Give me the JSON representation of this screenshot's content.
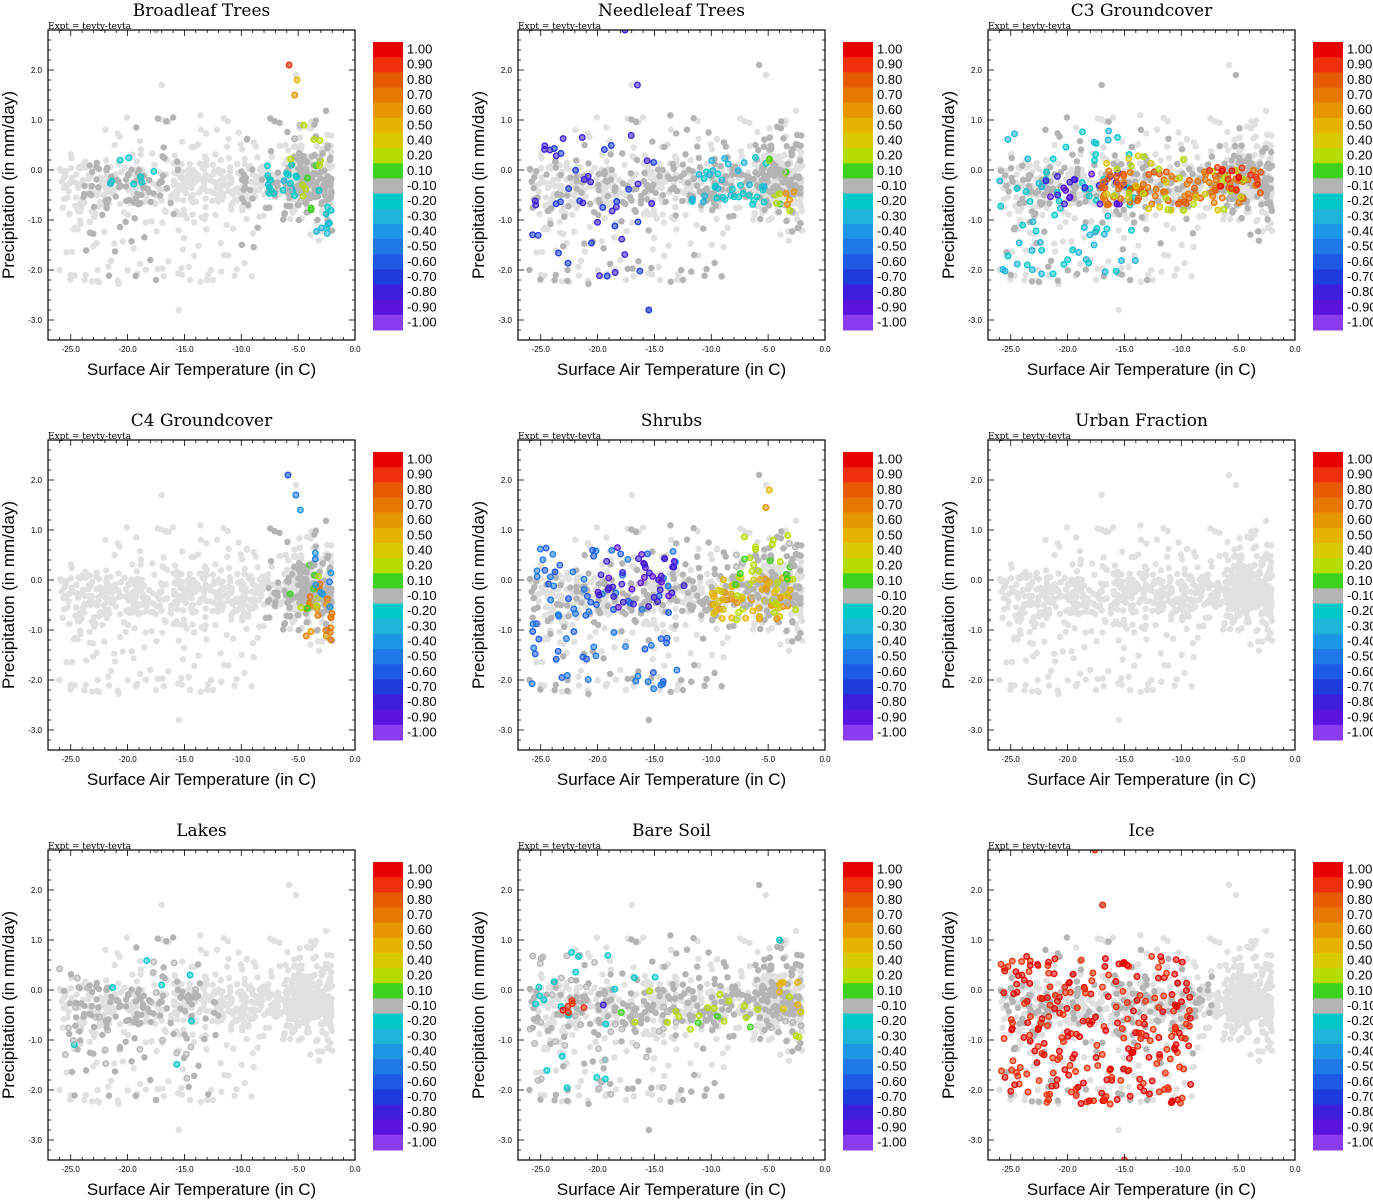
{
  "figure": {
    "expt_label": "Expt = tevty-tevta"
  },
  "chart_data": [
    {
      "type": "scatter",
      "title": "Broadleaf Trees",
      "expt": "Expt = tevty-tevta",
      "xlabel": "Surface Air Temperature (in C)",
      "ylabel": "Precipitation (in mm/day)",
      "xlim": [
        -27,
        0
      ],
      "ylim": [
        -3.4,
        2.8
      ],
      "x_ticks": [
        "-25.0",
        "-20.0",
        "-15.0",
        "-10.0",
        "-5.0",
        "0.0"
      ],
      "y_ticks": [
        "2.0",
        "1.0",
        "0.0",
        "-1.0",
        "-2.0",
        "-3.0"
      ],
      "highlight_clusters": [
        {
          "x": [
            -22,
            -17.5
          ],
          "y": [
            -0.3,
            0.3
          ],
          "value": -0.2,
          "n": 8
        },
        {
          "x": [
            -8,
            -5
          ],
          "y": [
            -0.6,
            0.1
          ],
          "value": -0.2,
          "n": 20
        },
        {
          "x": [
            -6.2,
            -3
          ],
          "y": [
            -0.8,
            0.9
          ],
          "value": 0.15,
          "n": 20
        },
        {
          "x": [
            -3.5,
            -2
          ],
          "y": [
            -1.4,
            -0.4
          ],
          "value": -0.25,
          "n": 10
        }
      ],
      "highlight_points": [
        {
          "x": -5.8,
          "y": 2.1,
          "value": 0.9
        },
        {
          "x": -5.1,
          "y": 1.8,
          "value": 0.45
        },
        {
          "x": -5.3,
          "y": 1.5,
          "value": 0.6
        }
      ]
    },
    {
      "type": "scatter",
      "title": "Needleleaf Trees",
      "expt": "Expt = tevty-tevta",
      "xlabel": "Surface Air Temperature (in C)",
      "ylabel": "Precipitation (in mm/day)",
      "xlim": [
        -27,
        0
      ],
      "ylim": [
        -3.4,
        2.8
      ],
      "x_ticks": [
        "-25.0",
        "-20.0",
        "-15.0",
        "-10.0",
        "-5.0",
        "0.0"
      ],
      "y_ticks": [
        "2.0",
        "1.0",
        "0.0",
        "-1.0",
        "-2.0",
        "-3.0"
      ],
      "highlight_clusters": [
        {
          "x": [
            -26,
            -15
          ],
          "y": [
            -2.2,
            0.7
          ],
          "value": -0.75,
          "n": 45
        },
        {
          "x": [
            -12,
            -5
          ],
          "y": [
            -0.7,
            0.3
          ],
          "value": -0.25,
          "n": 40
        },
        {
          "x": [
            -5,
            -3
          ],
          "y": [
            -1.0,
            0.4
          ],
          "value": 0.15,
          "n": 15
        },
        {
          "x": [
            -3.5,
            -2.5
          ],
          "y": [
            -0.8,
            0
          ],
          "value": 0.65,
          "n": 4
        }
      ],
      "highlight_points": [
        {
          "x": -17.6,
          "y": 2.8,
          "value": -0.8
        },
        {
          "x": -16.5,
          "y": 1.7,
          "value": -0.8
        },
        {
          "x": -15.5,
          "y": -2.8,
          "value": -0.7
        }
      ]
    },
    {
      "type": "scatter",
      "title": "C3 Groundcover",
      "expt": "Expt = tevty-tevta",
      "xlabel": "Surface Air Temperature (in C)",
      "ylabel": "Precipitation (in mm/day)",
      "xlim": [
        -27,
        0
      ],
      "ylim": [
        -3.4,
        2.8
      ],
      "x_ticks": [
        "-25.0",
        "-20.0",
        "-15.0",
        "-10.0",
        "-5.0",
        "0.0"
      ],
      "y_ticks": [
        "2.0",
        "1.0",
        "0.0",
        "-1.0",
        "-2.0",
        "-3.0"
      ],
      "highlight_clusters": [
        {
          "x": [
            -26,
            -14
          ],
          "y": [
            -2.1,
            0.8
          ],
          "value": -0.25,
          "n": 70
        },
        {
          "x": [
            -22,
            -15
          ],
          "y": [
            -0.7,
            0
          ],
          "value": -0.85,
          "n": 25
        },
        {
          "x": [
            -17,
            -3
          ],
          "y": [
            -0.7,
            0
          ],
          "value": 0.75,
          "n": 90
        },
        {
          "x": [
            -17,
            -4
          ],
          "y": [
            -0.9,
            0.3
          ],
          "value": 0.3,
          "n": 35
        },
        {
          "x": [
            -9,
            -3
          ],
          "y": [
            -0.4,
            0.1
          ],
          "value": 0.9,
          "n": 15
        }
      ],
      "highlight_points": []
    },
    {
      "type": "scatter",
      "title": "C4 Groundcover",
      "expt": "Expt = tevty-tevta",
      "xlabel": "Surface Air Temperature (in C)",
      "ylabel": "Precipitation (in mm/day)",
      "xlim": [
        -27,
        0
      ],
      "ylim": [
        -3.4,
        2.8
      ],
      "x_ticks": [
        "-25.0",
        "-20.0",
        "-15.0",
        "-10.0",
        "-5.0",
        "0.0"
      ],
      "y_ticks": [
        "2.0",
        "1.0",
        "0.0",
        "-1.0",
        "-2.0",
        "-3.0"
      ],
      "highlight_clusters": [
        {
          "x": [
            -4.5,
            -2
          ],
          "y": [
            -1.2,
            0
          ],
          "value": 0.65,
          "n": 22
        },
        {
          "x": [
            -6,
            -2.5
          ],
          "y": [
            -0.6,
            0.4
          ],
          "value": 0.15,
          "n": 12
        },
        {
          "x": [
            -3.5,
            -2
          ],
          "y": [
            -0.6,
            0.6
          ],
          "value": -0.45,
          "n": 8
        }
      ],
      "highlight_points": [
        {
          "x": -5.9,
          "y": 2.1,
          "value": -0.6
        },
        {
          "x": -5.2,
          "y": 1.7,
          "value": -0.5
        },
        {
          "x": -4.8,
          "y": 1.4,
          "value": -0.4
        }
      ]
    },
    {
      "type": "scatter",
      "title": "Shrubs",
      "expt": "Expt = tevty-tevta",
      "xlabel": "Surface Air Temperature (in C)",
      "ylabel": "Precipitation (in mm/day)",
      "xlim": [
        -27,
        0
      ],
      "ylim": [
        -3.4,
        2.8
      ],
      "x_ticks": [
        "-25.0",
        "-20.0",
        "-15.0",
        "-10.0",
        "-5.0",
        "0.0"
      ],
      "y_ticks": [
        "2.0",
        "1.0",
        "0.0",
        "-1.0",
        "-2.0",
        "-3.0"
      ],
      "highlight_clusters": [
        {
          "x": [
            -26,
            -13
          ],
          "y": [
            -2.2,
            0.7
          ],
          "value": -0.55,
          "n": 80
        },
        {
          "x": [
            -20,
            -12
          ],
          "y": [
            -0.6,
            0.7
          ],
          "value": -0.85,
          "n": 40
        },
        {
          "x": [
            -10,
            -3
          ],
          "y": [
            -0.8,
            0.1
          ],
          "value": 0.5,
          "n": 60
        },
        {
          "x": [
            -8,
            -2.5
          ],
          "y": [
            -0.8,
            1.0
          ],
          "value": 0.15,
          "n": 45
        }
      ],
      "highlight_points": [
        {
          "x": -4.9,
          "y": 1.8,
          "value": 0.45
        },
        {
          "x": -5.2,
          "y": 1.45,
          "value": 0.6
        }
      ]
    },
    {
      "type": "scatter",
      "title": "Urban Fraction",
      "expt": "Expt = tevty-tevta",
      "xlabel": "Surface Air Temperature (in C)",
      "ylabel": "Precipitation (in mm/day)",
      "xlim": [
        -27,
        0
      ],
      "ylim": [
        -3.4,
        2.8
      ],
      "x_ticks": [
        "-25.0",
        "-20.0",
        "-15.0",
        "-10.0",
        "-5.0",
        "0.0"
      ],
      "y_ticks": [
        "2.0",
        "1.0",
        "0.0",
        "-1.0",
        "-2.0",
        "-3.0"
      ],
      "highlight_clusters": [],
      "highlight_points": []
    },
    {
      "type": "scatter",
      "title": "Lakes",
      "expt": "Expt = tevty-tevta",
      "xlabel": "Surface Air Temperature (in C)",
      "ylabel": "Precipitation (in mm/day)",
      "xlim": [
        -27,
        0
      ],
      "ylim": [
        -3.4,
        2.8
      ],
      "x_ticks": [
        "-25.0",
        "-20.0",
        "-15.0",
        "-10.0",
        "-5.0",
        "0.0"
      ],
      "y_ticks": [
        "2.0",
        "1.0",
        "0.0",
        "-1.0",
        "-2.0",
        "-3.0"
      ],
      "highlight_clusters": [
        {
          "x": [
            -26,
            -14
          ],
          "y": [
            -1.9,
            0.6
          ],
          "value": -0.05,
          "n": 30
        }
      ],
      "highlight_points": [
        {
          "x": -17,
          "y": 0.1,
          "value": -0.25
        },
        {
          "x": -14.5,
          "y": 0.3,
          "value": -0.25
        }
      ]
    },
    {
      "type": "scatter",
      "title": "Bare Soil",
      "expt": "Expt = tevty-tevta",
      "xlabel": "Surface Air Temperature (in C)",
      "ylabel": "Precipitation (in mm/day)",
      "xlim": [
        -27,
        0
      ],
      "ylim": [
        -3.4,
        2.8
      ],
      "x_ticks": [
        "-25.0",
        "-20.0",
        "-15.0",
        "-10.0",
        "-5.0",
        "0.0"
      ],
      "y_ticks": [
        "2.0",
        "1.0",
        "0.0",
        "-1.0",
        "-2.0",
        "-3.0"
      ],
      "highlight_clusters": [
        {
          "x": [
            -26,
            -14
          ],
          "y": [
            -2.1,
            0.8
          ],
          "value": -0.05,
          "n": 60
        },
        {
          "x": [
            -24,
            -21
          ],
          "y": [
            -0.5,
            -0.2
          ],
          "value": 0.95,
          "n": 6
        },
        {
          "x": [
            -18,
            -2
          ],
          "y": [
            -0.8,
            0
          ],
          "value": 0.15,
          "n": 30
        },
        {
          "x": [
            -5,
            -2
          ],
          "y": [
            -0.6,
            0.2
          ],
          "value": 0.45,
          "n": 8
        },
        {
          "x": [
            -3,
            -1.5
          ],
          "y": [
            -1.2,
            -0.6
          ],
          "value": 0.15,
          "n": 3
        }
      ],
      "highlight_points": [
        {
          "x": -19.5,
          "y": -0.3,
          "value": -0.85
        },
        {
          "x": -4,
          "y": 1.0,
          "value": -0.25
        }
      ]
    },
    {
      "type": "scatter",
      "title": "Ice",
      "expt": "Expt = tevty-tevta",
      "xlabel": "Surface Air Temperature (in C)",
      "ylabel": "Precipitation (in mm/day)",
      "xlim": [
        -27,
        0
      ],
      "ylim": [
        -3.4,
        2.8
      ],
      "x_ticks": [
        "-25.0",
        "-20.0",
        "-15.0",
        "-10.0",
        "-5.0",
        "0.0"
      ],
      "y_ticks": [
        "2.0",
        "1.0",
        "0.0",
        "-1.0",
        "-2.0",
        "-3.0"
      ],
      "highlight_clusters": [
        {
          "x": [
            -26,
            -9
          ],
          "y": [
            -2.3,
            0.7
          ],
          "value": 0.95,
          "n": 260
        }
      ],
      "highlight_points": [
        {
          "x": -17.6,
          "y": 2.8,
          "value": 0.95
        },
        {
          "x": -16.9,
          "y": 1.7,
          "value": 0.95
        },
        {
          "x": -15,
          "y": -3.4,
          "value": 0.95
        }
      ]
    }
  ],
  "colorbar": {
    "labels": [
      "1.00",
      "0.90",
      "0.80",
      "0.70",
      "0.60",
      "0.50",
      "0.40",
      "0.20",
      "0.10",
      "-0.10",
      "-0.20",
      "-0.30",
      "-0.40",
      "-0.50",
      "-0.60",
      "-0.70",
      "-0.80",
      "-0.90",
      "-1.00"
    ],
    "colors": [
      "#e60000",
      "#f0300a",
      "#e65a00",
      "#e67800",
      "#e69600",
      "#e6b400",
      "#d7c800",
      "#b4dc00",
      "#3cd21e",
      "#b4b4b4",
      "#00c8c8",
      "#1eb4d7",
      "#1e96e6",
      "#1e78e6",
      "#1e5ae6",
      "#1e3cdc",
      "#3c1edc",
      "#5a14dc",
      "#8c3cf0"
    ],
    "zero_color": "#b4b4b4",
    "background_point_color": "#e0e0e0"
  }
}
